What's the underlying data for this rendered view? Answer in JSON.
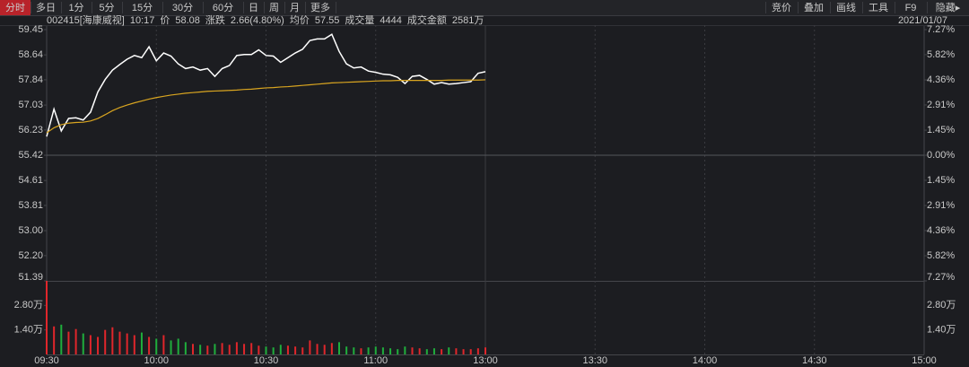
{
  "toolbar": {
    "tabs": [
      "分时",
      "多日",
      "1分",
      "5分",
      "15分",
      "30分",
      "60分",
      "日",
      "周",
      "月",
      "更多"
    ],
    "right": [
      "竞价",
      "叠加",
      "画线",
      "工具",
      "F9",
      "隐藏▸"
    ]
  },
  "info": {
    "code": "002415[海康威视]",
    "time": "10:17",
    "price_label": "价",
    "price": "58.08",
    "change_label": "涨跌",
    "change": "2.66(4.80%)",
    "avg_label": "均价",
    "avg": "57.55",
    "volume_label": "成交量",
    "volume": "4444",
    "amount_label": "成交金额",
    "amount": "2581万",
    "date": "2021/01/07"
  },
  "chart_data": [
    {
      "type": "line",
      "x": [
        0,
        2,
        4,
        6,
        8,
        10,
        12,
        14,
        16,
        18,
        20,
        22,
        24,
        26,
        28,
        30,
        32,
        34,
        36,
        38,
        40,
        42,
        44,
        46,
        48,
        50,
        52,
        54,
        56,
        58,
        60,
        62,
        64,
        66,
        68,
        70,
        72,
        74,
        76,
        78,
        80,
        82,
        84,
        86,
        88,
        90,
        92,
        94,
        96,
        98,
        100,
        102,
        104,
        106,
        108,
        110,
        112,
        114,
        116,
        118,
        120
      ],
      "xlim": [
        0,
        240
      ],
      "ylim": [
        51.39,
        59.45
      ],
      "yticks": [
        59.45,
        58.64,
        57.84,
        57.03,
        56.23,
        55.42,
        54.61,
        53.81,
        {
          "value": 53,
          "label": "53.00"
        },
        {
          "value": 52.2,
          "label": "52.20"
        },
        51.39
      ],
      "y2lim": [
        -7.27,
        7.27
      ],
      "y2ticks": [
        {
          "value": 7.27,
          "label": "7.27%"
        },
        {
          "value": 5.82,
          "label": "5.82%"
        },
        {
          "value": 4.36,
          "label": "4.36%"
        },
        {
          "value": 2.91,
          "label": "2.91%"
        },
        {
          "value": 1.45,
          "label": "1.45%"
        },
        {
          "value": 0,
          "label": "0.00%"
        },
        {
          "value": -1.45,
          "label": "1.45%"
        },
        {
          "value": -2.91,
          "label": "2.91%"
        },
        {
          "value": -4.36,
          "label": "4.36%"
        },
        {
          "value": -5.82,
          "label": "5.82%"
        },
        {
          "value": -7.27,
          "label": "7.27%"
        }
      ],
      "series": [
        {
          "color": "#ffffff",
          "values": [
            56.02,
            56.9,
            56.2,
            56.6,
            56.62,
            56.55,
            56.8,
            57.45,
            57.85,
            58.15,
            58.33,
            58.5,
            58.62,
            58.55,
            58.9,
            58.45,
            58.7,
            58.6,
            58.35,
            58.2,
            58.25,
            58.15,
            58.2,
            57.95,
            58.2,
            58.3,
            58.62,
            58.65,
            58.65,
            58.8,
            58.62,
            58.6,
            58.4,
            58.55,
            58.7,
            58.82,
            59.1,
            59.15,
            59.15,
            59.3,
            58.75,
            58.35,
            58.22,
            58.25,
            58.12,
            58.08,
            58.02,
            58.0,
            57.92,
            57.72,
            57.95,
            57.98,
            57.85,
            57.7,
            57.75,
            57.7,
            57.72,
            57.75,
            57.78,
            58.05,
            58.1
          ]
        },
        {
          "color": "#d9a520",
          "values": [
            56.14,
            56.3,
            56.4,
            56.45,
            56.47,
            56.48,
            56.52,
            56.6,
            56.72,
            56.85,
            56.95,
            57.03,
            57.1,
            57.16,
            57.22,
            57.27,
            57.31,
            57.35,
            57.38,
            57.41,
            57.43,
            57.45,
            57.47,
            57.48,
            57.49,
            57.5,
            57.51,
            57.53,
            57.54,
            57.56,
            57.58,
            57.59,
            57.61,
            57.62,
            57.64,
            57.66,
            57.68,
            57.7,
            57.72,
            57.74,
            57.75,
            57.76,
            57.77,
            57.78,
            57.79,
            57.8,
            57.81,
            57.81,
            57.82,
            57.82,
            57.82,
            57.82,
            57.82,
            57.82,
            57.82,
            57.83,
            57.83,
            57.83,
            57.83,
            57.83,
            57.84
          ]
        }
      ]
    },
    {
      "type": "bar",
      "x": [
        0,
        2,
        4,
        6,
        8,
        10,
        12,
        14,
        16,
        18,
        20,
        22,
        24,
        26,
        28,
        30,
        32,
        34,
        36,
        38,
        40,
        42,
        44,
        46,
        48,
        50,
        52,
        54,
        56,
        58,
        60,
        62,
        64,
        66,
        68,
        70,
        72,
        74,
        76,
        78,
        80,
        82,
        84,
        86,
        88,
        90,
        92,
        94,
        96,
        98,
        100,
        102,
        104,
        106,
        108,
        110,
        112,
        114,
        116,
        118,
        120
      ],
      "values": [
        4.2,
        1.6,
        1.7,
        1.3,
        1.45,
        1.2,
        1.1,
        1.0,
        1.4,
        1.55,
        1.3,
        1.2,
        1.1,
        1.25,
        1.0,
        0.9,
        1.1,
        0.8,
        0.9,
        0.7,
        0.6,
        0.55,
        0.5,
        0.6,
        0.65,
        0.55,
        0.7,
        0.6,
        0.65,
        0.5,
        0.45,
        0.4,
        0.55,
        0.5,
        0.45,
        0.4,
        0.8,
        0.6,
        0.55,
        0.65,
        0.7,
        0.45,
        0.4,
        0.35,
        0.4,
        0.45,
        0.4,
        0.35,
        0.3,
        0.45,
        0.4,
        0.35,
        0.3,
        0.35,
        0.3,
        0.4,
        0.35,
        0.3,
        0.3,
        0.35,
        0.4
      ],
      "up_color": "#e0262b",
      "down_color": "#1fae3c",
      "xlim": [
        0,
        240
      ],
      "xticks": [
        {
          "value": 0,
          "label": "09:30"
        },
        {
          "value": 30,
          "label": "10:00"
        },
        {
          "value": 60,
          "label": "10:30"
        },
        {
          "value": 90,
          "label": "11:00"
        },
        {
          "value": 120,
          "label": "13:00"
        },
        {
          "value": 150,
          "label": "13:30"
        },
        {
          "value": 180,
          "label": "14:00"
        },
        {
          "value": 210,
          "label": "14:30"
        },
        {
          "value": 240,
          "label": "15:00"
        }
      ],
      "ylim": [
        0,
        4.2
      ],
      "yticks": [
        {
          "value": 2.8,
          "label": "2.80万"
        },
        {
          "value": 1.4,
          "label": "1.40万"
        }
      ]
    }
  ]
}
